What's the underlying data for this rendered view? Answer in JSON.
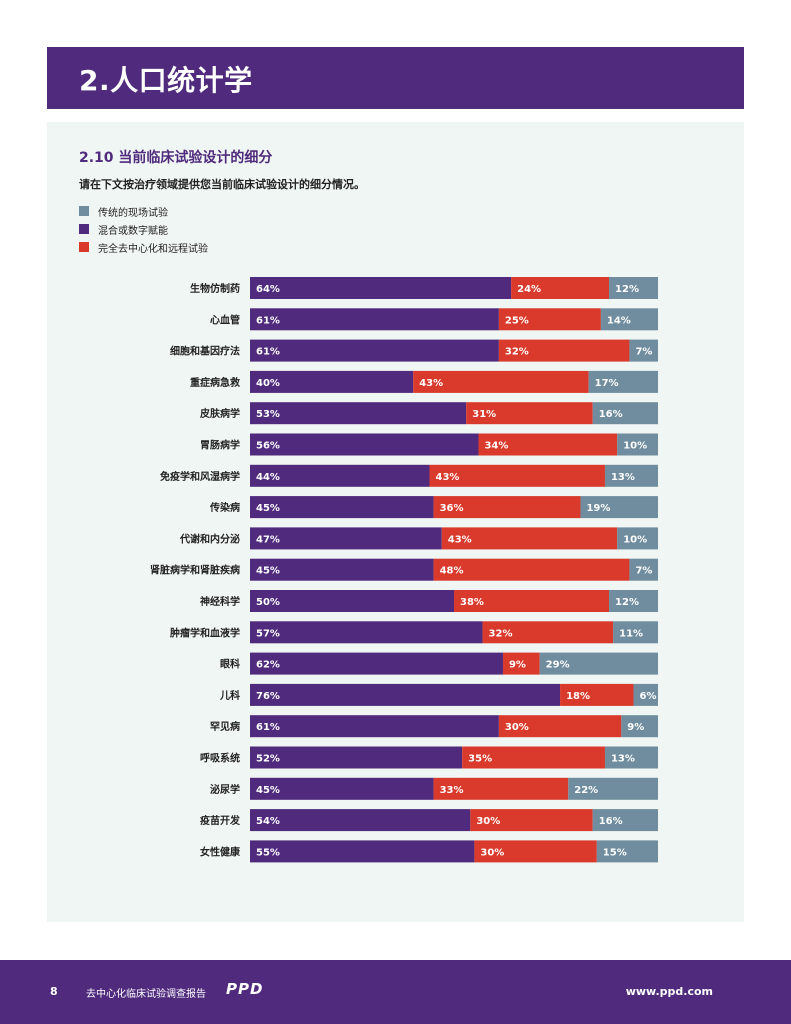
{
  "header": {
    "title": "2.人口统计学"
  },
  "section": {
    "title": "2.10 当前临床试验设计的细分",
    "question": "请在下文按治疗领域提供您当前临床试验设计的细分情况。"
  },
  "colors": {
    "traditional": "#6f8d9e",
    "hybrid": "#4f2a7d",
    "decentralized": "#d93a2b",
    "brand": "#4f2a7d"
  },
  "chart_data": {
    "type": "bar",
    "orientation": "horizontal",
    "stacked": true,
    "normalized": true,
    "legend_position": "top-left",
    "categories": [
      "生物仿制药",
      "心血管",
      "细胞和基因疗法",
      "重症病急救",
      "皮肤病学",
      "胃肠病学",
      "免疫学和风湿病学",
      "传染病",
      "代谢和内分泌",
      "肾脏病学和肾脏疾病",
      "神经科学",
      "肿瘤学和血液学",
      "眼科",
      "儿科",
      "罕见病",
      "呼吸系统",
      "泌尿学",
      "疫苗开发",
      "女性健康"
    ],
    "series": [
      {
        "name": "混合或数字赋能",
        "values": [
          64,
          61,
          61,
          40,
          53,
          56,
          44,
          45,
          47,
          45,
          50,
          57,
          62,
          76,
          61,
          52,
          45,
          54,
          55
        ]
      },
      {
        "name": "完全去中心化和远程试验",
        "values": [
          24,
          25,
          32,
          43,
          31,
          34,
          43,
          36,
          43,
          48,
          38,
          32,
          9,
          18,
          30,
          35,
          33,
          30,
          30
        ]
      },
      {
        "name": "传统的现场试验",
        "values": [
          12,
          14,
          7,
          17,
          16,
          10,
          13,
          19,
          10,
          7,
          12,
          11,
          29,
          6,
          9,
          13,
          22,
          16,
          15
        ]
      }
    ],
    "legend": [
      "传统的现场试验",
      "混合或数字赋能",
      "完全去中心化和远程试验"
    ]
  },
  "footer": {
    "page_number": "8",
    "report_name": "去中心化临床试验调查报告",
    "logo_text": "PPD",
    "website": "www.ppd.com"
  }
}
